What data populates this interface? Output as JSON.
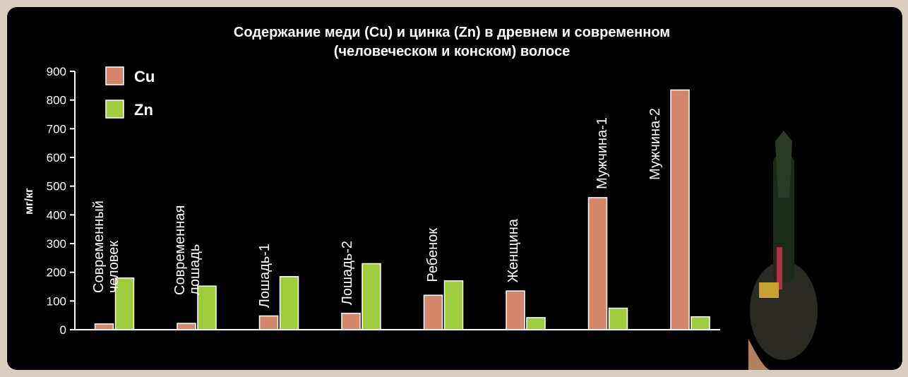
{
  "chart_data": {
    "type": "bar",
    "title": "Содержание меди (Cu) и цинка (Zn) в древнем и современном",
    "subtitle": "(человеческом и конском) волосе",
    "y_label": "мг/кг",
    "categories": [
      "Современный человек",
      "Современная лошадь",
      "Лошадь-1",
      "Лошадь-2",
      "Ребенок",
      "Женщина",
      "Мужчина-1",
      "Мужчина-2"
    ],
    "series": [
      {
        "name": "Cu",
        "color": "#d4876a",
        "values": [
          20,
          22,
          48,
          57,
          120,
          135,
          460,
          835
        ]
      },
      {
        "name": "Zn",
        "color": "#9dcc3c",
        "values": [
          180,
          152,
          185,
          230,
          170,
          42,
          75,
          45
        ]
      }
    ],
    "ylim": [
      0,
      900
    ],
    "yticks": [
      0,
      100,
      200,
      300,
      400,
      500,
      600,
      700,
      800,
      900
    ],
    "legend": "top-left"
  }
}
